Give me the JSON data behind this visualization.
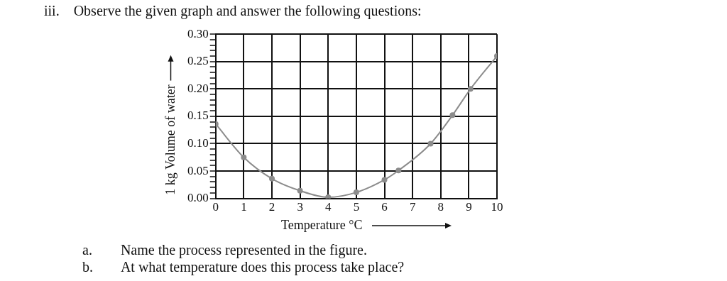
{
  "chart_data": {
    "type": "line",
    "title": "iii.    Observe the given graph and answer the following questions:",
    "xlabel": "Temperature °C",
    "ylabel": "1 kg Volume of water",
    "x": [
      0,
      1,
      2,
      3,
      4,
      5,
      6,
      6.5,
      7.64,
      8.42,
      9.06,
      10
    ],
    "series": [
      {
        "color": "#8c8c8c",
        "values": [
          0.136,
          0.075,
          0.036,
          0.014,
          0.002,
          0.011,
          0.034,
          0.051,
          0.1,
          0.152,
          0.2,
          0.26
        ]
      }
    ],
    "xlim": [
      0,
      10
    ],
    "xticks": [
      0,
      1,
      2,
      3,
      4,
      5,
      6,
      7,
      8,
      9,
      10
    ],
    "ylim": [
      0,
      0.3
    ],
    "yticks": [
      {
        "value": 0,
        "label": "0.00"
      },
      {
        "value": 0.01,
        "label": null
      },
      {
        "value": 0.02,
        "label": null
      },
      {
        "value": 0.03,
        "label": null
      },
      {
        "value": 0.04,
        "label": null
      },
      {
        "value": 0.05,
        "label": "0.05"
      },
      {
        "value": 0.06,
        "label": null
      },
      {
        "value": 0.07,
        "label": null
      },
      {
        "value": 0.08,
        "label": null
      },
      {
        "value": 0.09,
        "label": null
      },
      {
        "value": 0.1,
        "label": "0.10"
      },
      {
        "value": 0.11,
        "label": null
      },
      {
        "value": 0.12,
        "label": null
      },
      {
        "value": 0.13,
        "label": null
      },
      {
        "value": 0.14,
        "label": null
      },
      {
        "value": 0.15,
        "label": "0.15"
      },
      {
        "value": 0.16,
        "label": null
      },
      {
        "value": 0.17,
        "label": null
      },
      {
        "value": 0.18,
        "label": null
      },
      {
        "value": 0.19,
        "label": null
      },
      {
        "value": 0.2,
        "label": "0.20"
      },
      {
        "value": 0.21,
        "label": null
      },
      {
        "value": 0.22,
        "label": null
      },
      {
        "value": 0.23,
        "label": null
      },
      {
        "value": 0.24,
        "label": null
      },
      {
        "value": 0.25,
        "label": "0.25"
      },
      {
        "value": 0.26,
        "label": null
      },
      {
        "value": 0.27,
        "label": null
      },
      {
        "value": 0.28,
        "label": null
      },
      {
        "value": 0.29,
        "label": null
      },
      {
        "value": 0.3,
        "label": "0.30"
      }
    ],
    "grid": true,
    "legend": false,
    "marker": "circle",
    "line_style": "solid",
    "annotations": [
      "a.        Name the process represented in the figure.",
      "b.        At what temperature does this process take place?"
    ]
  }
}
